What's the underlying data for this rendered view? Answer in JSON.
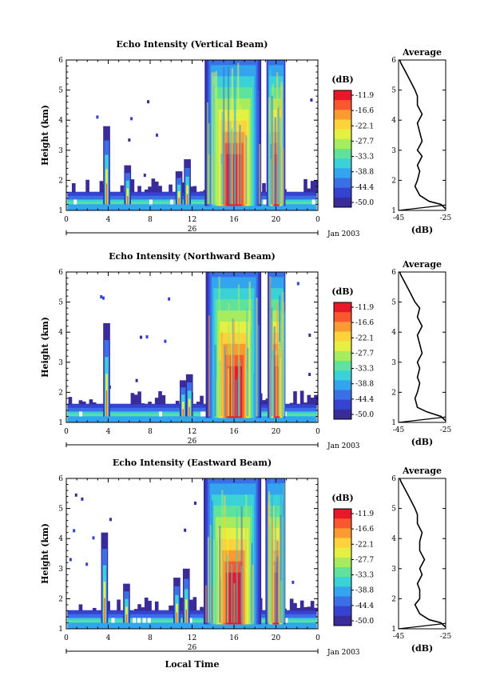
{
  "chart_data": [
    {
      "type": "heatmap",
      "title": "Echo Intensity (Vertical Beam)",
      "ylabel": "Height (km)",
      "xlabel": "",
      "x_ticks": [
        "0",
        "4",
        "8",
        "12",
        "16",
        "20",
        "0"
      ],
      "y_ticks": [
        "1",
        "2",
        "3",
        "4",
        "5",
        "6"
      ],
      "xlim": [
        0,
        24
      ],
      "ylim": [
        1,
        6
      ],
      "date_label": "26",
      "month_label": "Jan 2003",
      "colorbar": {
        "unit": "(dB)",
        "levels": [
          "-11.9",
          "-16.6",
          "-22.1",
          "-27.7",
          "-33.3",
          "-38.8",
          "-44.4",
          "-50.0"
        ]
      },
      "features": [
        {
          "start": 3.7,
          "end": 4.0,
          "top_km": 3.8
        },
        {
          "start": 5.7,
          "end": 6.0,
          "top_km": 2.5
        },
        {
          "start": 10.6,
          "end": 10.9,
          "top_km": 2.3
        },
        {
          "start": 11.4,
          "end": 11.7,
          "top_km": 2.7
        },
        {
          "start": 13.2,
          "end": 18.6,
          "top_km": 6.0
        },
        {
          "start": 19.1,
          "end": 20.9,
          "top_km": 6.0
        }
      ],
      "average_profile": {
        "title": "Average",
        "xlabel": "(dB)",
        "x_ticks": [
          "-45",
          "-25"
        ],
        "xlim": [
          -45,
          -25
        ],
        "y_ticks": [
          "1",
          "2",
          "3",
          "4",
          "5",
          "6"
        ],
        "height_km": [
          1.05,
          1.2,
          1.3,
          1.5,
          1.8,
          2.0,
          2.3,
          2.5,
          2.8,
          3.0,
          3.3,
          3.6,
          3.9,
          4.2,
          4.5,
          4.8,
          5.0,
          5.3,
          5.6,
          5.9,
          6.0
        ],
        "value_db": [
          -25,
          -27,
          -32,
          -36,
          -38,
          -37,
          -36,
          -37,
          -35,
          -37,
          -35,
          -36,
          -37,
          -35,
          -37,
          -37,
          -38,
          -40,
          -42,
          -44,
          -44.5
        ]
      }
    },
    {
      "type": "heatmap",
      "title": "Echo Intensity (Northward Beam)",
      "ylabel": "Height (km)",
      "xlabel": "",
      "x_ticks": [
        "0",
        "4",
        "8",
        "12",
        "16",
        "20",
        "0"
      ],
      "y_ticks": [
        "1",
        "2",
        "3",
        "4",
        "5",
        "6"
      ],
      "xlim": [
        0,
        24
      ],
      "ylim": [
        1,
        6
      ],
      "date_label": "26",
      "month_label": "Jan 2003",
      "colorbar": {
        "unit": "(dB)",
        "levels": [
          "-11.9",
          "-16.6",
          "-22.1",
          "-27.7",
          "-33.3",
          "-38.8",
          "-44.4",
          "-50.0"
        ]
      },
      "features": [
        {
          "start": 3.7,
          "end": 4.0,
          "top_km": 4.3
        },
        {
          "start": 11.0,
          "end": 11.3,
          "top_km": 2.4
        },
        {
          "start": 11.6,
          "end": 11.9,
          "top_km": 2.6
        },
        {
          "start": 13.3,
          "end": 18.6,
          "top_km": 6.0
        },
        {
          "start": 19.2,
          "end": 20.9,
          "top_km": 6.0
        }
      ],
      "average_profile": {
        "title": "Average",
        "xlabel": "(dB)",
        "x_ticks": [
          "-45",
          "-25"
        ],
        "xlim": [
          -45,
          -25
        ],
        "y_ticks": [
          "1",
          "2",
          "3",
          "4",
          "5",
          "6"
        ],
        "height_km": [
          1.05,
          1.2,
          1.35,
          1.5,
          1.8,
          2.0,
          2.3,
          2.5,
          2.8,
          3.0,
          3.3,
          3.6,
          3.9,
          4.2,
          4.5,
          4.8,
          5.0,
          5.3,
          5.6,
          5.9,
          6.0
        ],
        "value_db": [
          -25,
          -27,
          -33,
          -37,
          -38,
          -37,
          -36,
          -37,
          -36,
          -37,
          -35,
          -36,
          -37,
          -35,
          -37,
          -36,
          -38,
          -40,
          -42,
          -44,
          -44.5
        ]
      }
    },
    {
      "type": "heatmap",
      "title": "Echo Intensity (Eastward Beam)",
      "ylabel": "Height (km)",
      "xlabel": "Local Time",
      "x_ticks": [
        "0",
        "4",
        "8",
        "12",
        "16",
        "20",
        "0"
      ],
      "y_ticks": [
        "1",
        "2",
        "3",
        "4",
        "5",
        "6"
      ],
      "xlim": [
        0,
        24
      ],
      "ylim": [
        1,
        6
      ],
      "date_label": "26",
      "month_label": "Jan 2003",
      "colorbar": {
        "unit": "(dB)",
        "levels": [
          "-11.9",
          "-16.6",
          "-22.1",
          "-27.7",
          "-33.3",
          "-38.8",
          "-44.4",
          "-50.0"
        ]
      },
      "features": [
        {
          "start": 3.5,
          "end": 3.8,
          "top_km": 4.2
        },
        {
          "start": 5.6,
          "end": 5.9,
          "top_km": 2.5
        },
        {
          "start": 10.4,
          "end": 10.7,
          "top_km": 2.7
        },
        {
          "start": 11.3,
          "end": 11.6,
          "top_km": 3.0
        },
        {
          "start": 13.1,
          "end": 18.6,
          "top_km": 6.0
        },
        {
          "start": 19.0,
          "end": 20.9,
          "top_km": 6.0
        }
      ],
      "average_profile": {
        "title": "Average",
        "xlabel": "(dB)",
        "x_ticks": [
          "-45",
          "-25"
        ],
        "xlim": [
          -45,
          -25
        ],
        "y_ticks": [
          "1",
          "2",
          "3",
          "4",
          "5",
          "6"
        ],
        "height_km": [
          1.05,
          1.2,
          1.3,
          1.5,
          1.8,
          2.0,
          2.3,
          2.5,
          2.8,
          3.0,
          3.3,
          3.6,
          3.9,
          4.2,
          4.5,
          4.8,
          5.0,
          5.3,
          5.6,
          5.9,
          6.0
        ],
        "value_db": [
          -25,
          -27,
          -32,
          -36,
          -38,
          -36,
          -36,
          -37,
          -35,
          -36,
          -34,
          -36,
          -36,
          -35,
          -37,
          -37,
          -38,
          -40,
          -42,
          -44,
          -44.5
        ]
      }
    }
  ],
  "colors": {
    "palette": [
      "#e8182a",
      "#f9572d",
      "#fb9a30",
      "#fcd33b",
      "#e6f043",
      "#a6ec5e",
      "#5fe39c",
      "#3ad2d6",
      "#33a5ee",
      "#3a6fe6",
      "#3444d0",
      "#3a2b9a"
    ]
  }
}
